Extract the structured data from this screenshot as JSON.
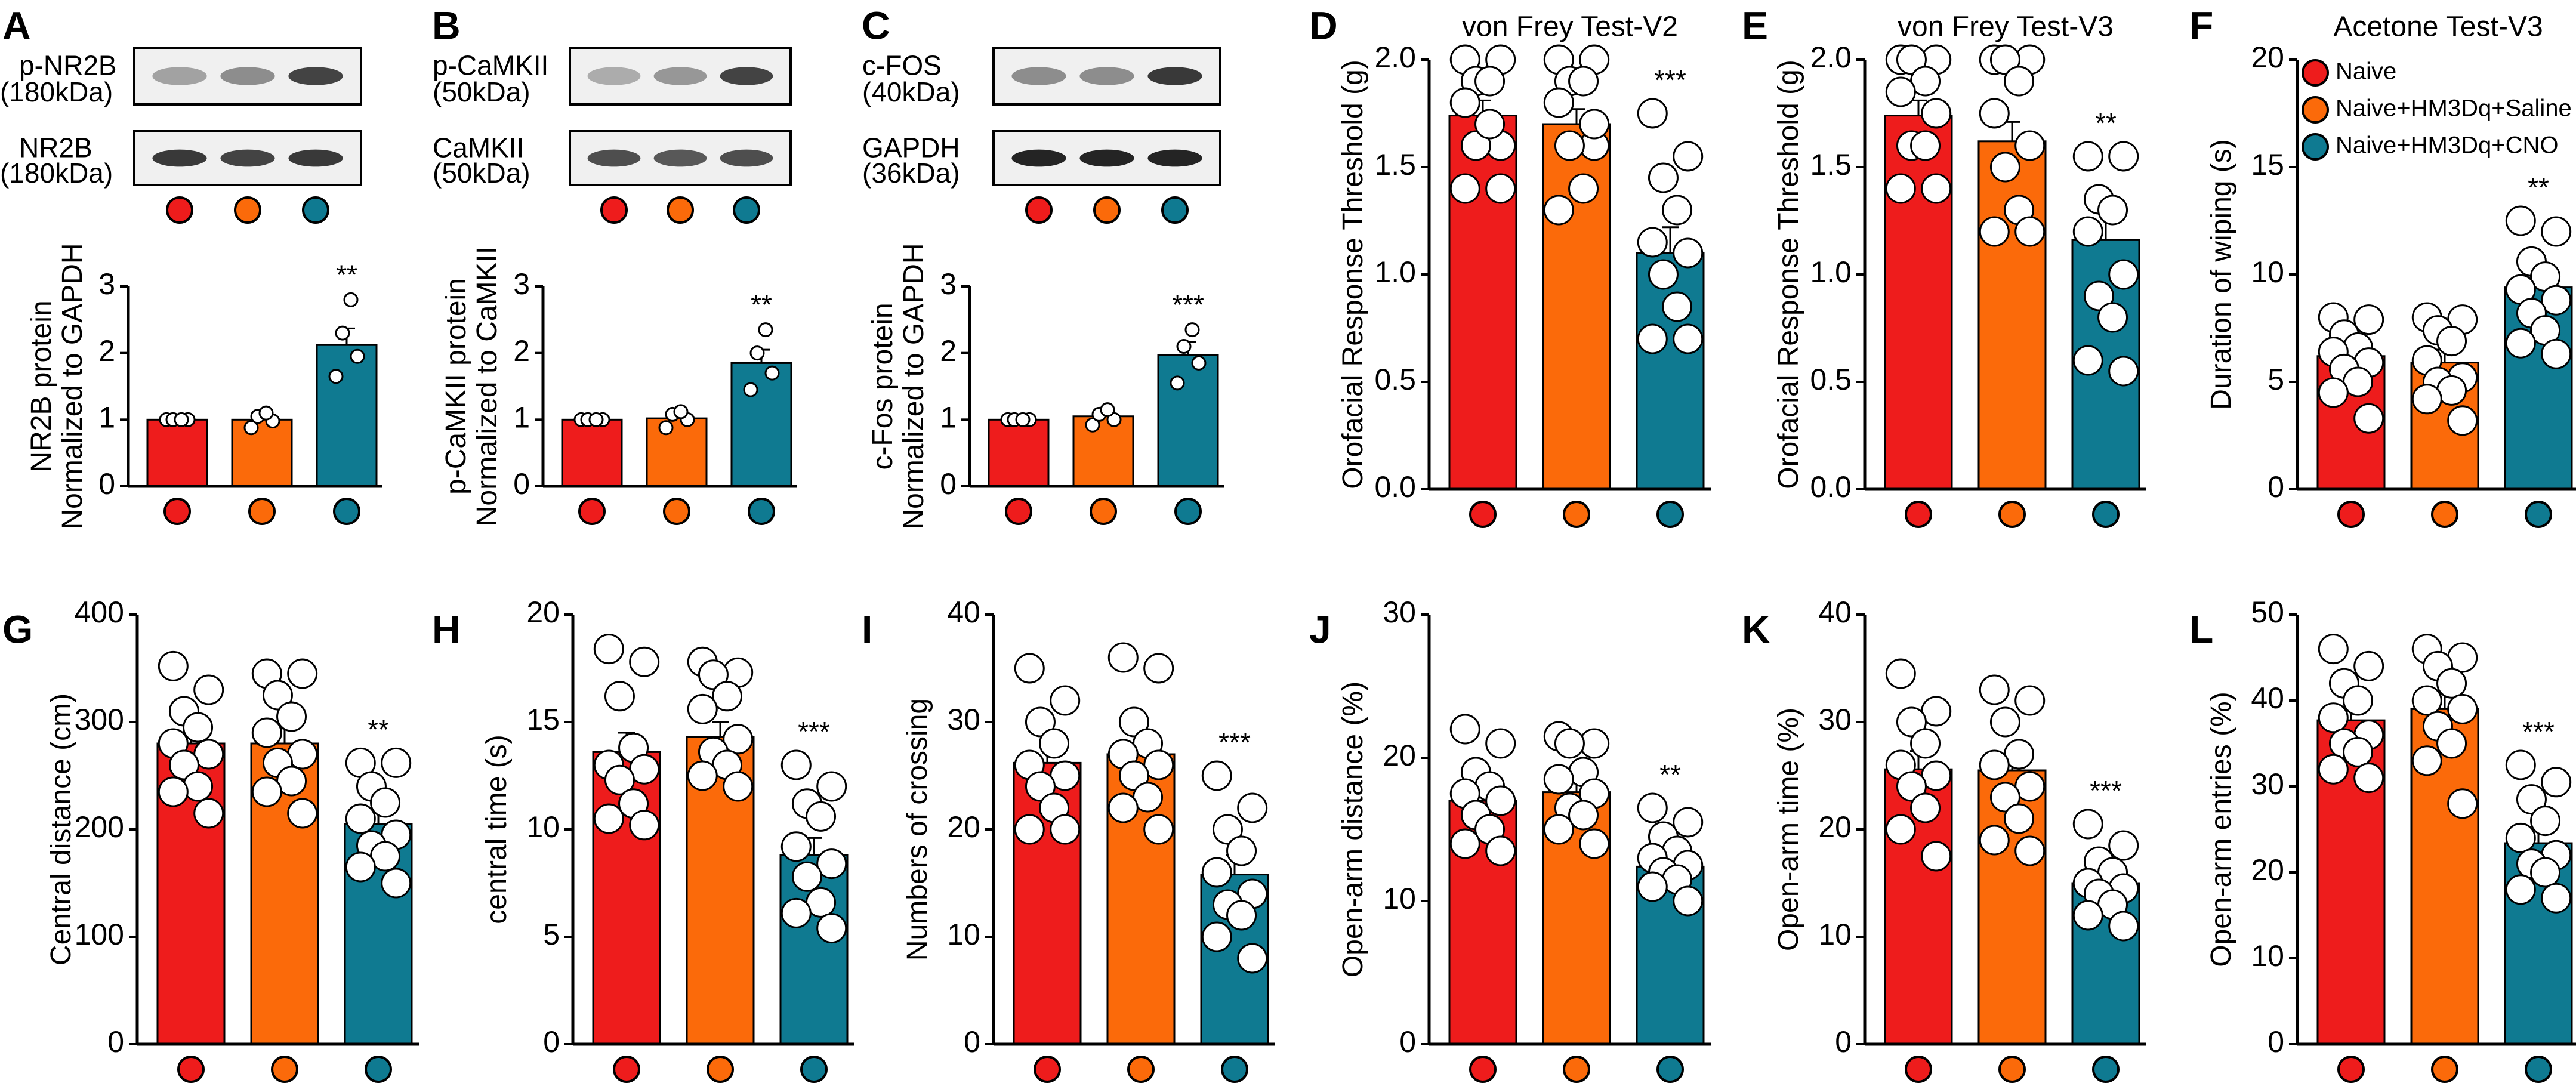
{
  "colors": {
    "naive": "#ee1c1c",
    "saline": "#fb6a0a",
    "cno": "#0f7a91"
  },
  "legend": {
    "items": [
      {
        "label": "Naive",
        "color": "#ee1c1c"
      },
      {
        "label": "Naive+HM3Dq+Saline",
        "color": "#fb6a0a"
      },
      {
        "label": "Naive+HM3Dq+CNO",
        "color": "#0f7a91"
      }
    ]
  },
  "blots": [
    {
      "panel": "A",
      "rows": [
        {
          "label1": "p-NR2B",
          "label2": "(180kDa)",
          "bands": [
            0.35,
            0.45,
            0.8
          ]
        },
        {
          "label1": "NR2B",
          "label2": "(180kDa)",
          "bands": [
            0.85,
            0.8,
            0.85
          ]
        }
      ]
    },
    {
      "panel": "B",
      "rows": [
        {
          "label1": "p-CaMKII",
          "label2": "(50kDa)",
          "bands": [
            0.3,
            0.4,
            0.8
          ]
        },
        {
          "label1": "CaMKII",
          "label2": "(50kDa)",
          "bands": [
            0.75,
            0.7,
            0.75
          ]
        }
      ]
    },
    {
      "panel": "C",
      "rows": [
        {
          "label1": "c-FOS",
          "label2": "(40kDa)",
          "bands": [
            0.45,
            0.45,
            0.85
          ]
        },
        {
          "label1": "GAPDH",
          "label2": "(36kDa)",
          "bands": [
            0.95,
            0.95,
            0.95
          ]
        }
      ]
    }
  ],
  "chart_data": [
    {
      "panel": "A",
      "type": "bar",
      "title": "",
      "ylabel": [
        "NR2B protein",
        "Normalized to GAPDH"
      ],
      "ylim": [
        0,
        3
      ],
      "ticks": [
        "0",
        "1",
        "2",
        "3"
      ],
      "values": [
        1.0,
        1.0,
        2.12
      ],
      "errors": [
        0.02,
        0.08,
        0.25
      ],
      "points": [
        [
          1,
          1,
          1,
          1
        ],
        [
          0.88,
          0.98,
          1.05,
          1.1
        ],
        [
          1.65,
          1.95,
          2.3,
          2.8
        ]
      ],
      "sig": [
        "",
        "",
        "**"
      ]
    },
    {
      "panel": "B",
      "type": "bar",
      "title": "",
      "ylabel": [
        "p-CaMKII protein",
        "Normalized to CaMKII"
      ],
      "ylim": [
        0,
        3
      ],
      "ticks": [
        "0",
        "1",
        "2",
        "3"
      ],
      "values": [
        1.0,
        1.02,
        1.85
      ],
      "errors": [
        0.02,
        0.1,
        0.2
      ],
      "points": [
        [
          1,
          1,
          1,
          1
        ],
        [
          0.88,
          1.0,
          1.08,
          1.12
        ],
        [
          1.45,
          1.7,
          2.0,
          2.35
        ]
      ],
      "sig": [
        "",
        "",
        "**"
      ]
    },
    {
      "panel": "C",
      "type": "bar",
      "title": "",
      "ylabel": [
        "c-Fos protein",
        "Normalized to GAPDH"
      ],
      "ylim": [
        0,
        3
      ],
      "ticks": [
        "0",
        "1",
        "2",
        "3"
      ],
      "values": [
        1.0,
        1.05,
        1.97
      ],
      "errors": [
        0.02,
        0.08,
        0.2
      ],
      "points": [
        [
          1,
          1,
          1,
          1
        ],
        [
          0.92,
          1.0,
          1.08,
          1.15
        ],
        [
          1.55,
          1.85,
          2.1,
          2.35
        ]
      ],
      "sig": [
        "",
        "",
        "***"
      ]
    },
    {
      "panel": "D",
      "type": "bar",
      "title": "von Frey Test-V2",
      "ylabel": [
        "Orofacial Response Threshold (g)"
      ],
      "ylim": [
        0,
        2.0
      ],
      "ticks": [
        "0.0",
        "0.5",
        "1.0",
        "1.5",
        "2.0"
      ],
      "values": [
        1.74,
        1.7,
        1.1
      ],
      "errors": [
        0.07,
        0.07,
        0.12
      ],
      "points": [
        [
          2,
          2,
          1.9,
          1.9,
          1.8,
          1.6,
          1.6,
          1.7,
          1.4,
          1.4
        ],
        [
          2,
          2,
          1.9,
          1.9,
          1.8,
          1.6,
          1.6,
          1.4,
          1.3,
          1.7
        ],
        [
          1.75,
          1.55,
          1.45,
          1.3,
          1.15,
          1.1,
          1.0,
          0.85,
          0.7,
          0.7
        ]
      ],
      "sig": [
        "",
        "",
        "***"
      ]
    },
    {
      "panel": "E",
      "type": "bar",
      "title": "von Frey Test-V3",
      "ylabel": [
        "Orofacial Response Threshold (g)"
      ],
      "ylim": [
        0,
        2.0
      ],
      "ticks": [
        "0.0",
        "0.5",
        "1.0",
        "1.5",
        "2.0"
      ],
      "values": [
        1.74,
        1.62,
        1.16
      ],
      "errors": [
        0.07,
        0.09,
        0.13
      ],
      "points": [
        [
          2,
          2,
          2,
          1.9,
          1.85,
          1.75,
          1.6,
          1.6,
          1.4,
          1.4
        ],
        [
          2,
          2,
          2,
          1.9,
          1.75,
          1.6,
          1.5,
          1.3,
          1.2,
          1.2
        ],
        [
          1.55,
          1.55,
          1.35,
          1.3,
          1.2,
          1.0,
          0.9,
          0.8,
          0.6,
          0.55
        ]
      ],
      "sig": [
        "",
        "",
        "**"
      ]
    },
    {
      "panel": "F",
      "type": "bar",
      "title": "Acetone Test-V3",
      "ylabel": [
        "Duration of wiping (s)"
      ],
      "ylim": [
        0,
        20
      ],
      "ticks": [
        "0",
        "5",
        "10",
        "15",
        "20"
      ],
      "values": [
        6.2,
        5.9,
        9.4
      ],
      "errors": [
        0.45,
        0.6,
        0.65
      ],
      "points": [
        [
          8,
          7.9,
          7.2,
          6.6,
          6.4,
          5.9,
          5.6,
          5.0,
          4.5,
          3.3
        ],
        [
          8,
          7.9,
          7.4,
          6.9,
          6.0,
          5.2,
          5.0,
          4.6,
          4.2,
          3.2
        ],
        [
          12.5,
          12.0,
          10.6,
          9.9,
          9.3,
          8.8,
          8.2,
          7.4,
          6.8,
          6.3
        ]
      ],
      "sig": [
        "",
        "",
        "**"
      ]
    },
    {
      "panel": "G",
      "type": "bar",
      "title": "",
      "ylabel": [
        "Central distance (cm)"
      ],
      "ylim": [
        0,
        400
      ],
      "ticks": [
        "0",
        "100",
        "200",
        "300",
        "400"
      ],
      "values": [
        280,
        280,
        205
      ],
      "errors": [
        14,
        14,
        12
      ],
      "points": [
        [
          352,
          330,
          310,
          295,
          280,
          270,
          260,
          240,
          235,
          215
        ],
        [
          345,
          345,
          325,
          305,
          290,
          270,
          262,
          245,
          235,
          215
        ],
        [
          262,
          262,
          240,
          225,
          210,
          195,
          185,
          175,
          165,
          150
        ]
      ],
      "sig": [
        "",
        "",
        "**"
      ]
    },
    {
      "panel": "H",
      "type": "bar",
      "title": "",
      "ylabel": [
        "central time (s)"
      ],
      "ylim": [
        0,
        20
      ],
      "ticks": [
        "0",
        "5",
        "10",
        "15",
        "20"
      ],
      "values": [
        13.6,
        14.3,
        8.8
      ],
      "errors": [
        0.9,
        0.7,
        0.8
      ],
      "points": [
        [
          18.4,
          17.8,
          16.2,
          13.8,
          13.0,
          12.8,
          12.3,
          11.2,
          10.5,
          10.2
        ],
        [
          17.8,
          17.3,
          17.2,
          16.2,
          15.6,
          14.2,
          13.6,
          13.0,
          12.5,
          12.0
        ],
        [
          13.0,
          12.0,
          11.2,
          10.6,
          9.2,
          8.4,
          7.8,
          6.6,
          6.1,
          5.4
        ]
      ],
      "sig": [
        "",
        "",
        "***"
      ]
    },
    {
      "panel": "I",
      "type": "bar",
      "title": "",
      "ylabel": [
        "Numbers of crossing"
      ],
      "ylim": [
        0,
        40
      ],
      "ticks": [
        "0",
        "10",
        "20",
        "30",
        "40"
      ],
      "values": [
        26.2,
        27.0,
        15.8
      ],
      "errors": [
        1.7,
        1.9,
        1.8
      ],
      "points": [
        [
          35,
          32,
          30,
          28,
          26,
          25,
          24,
          22,
          20,
          20
        ],
        [
          36,
          35,
          30,
          28,
          27,
          26,
          25,
          23,
          22,
          20
        ],
        [
          25,
          22,
          20,
          18,
          16,
          14,
          13,
          12,
          10,
          8
        ]
      ],
      "sig": [
        "",
        "",
        "***"
      ]
    },
    {
      "panel": "J",
      "type": "bar",
      "title": "",
      "ylabel": [
        "Open-arm distance (%)"
      ],
      "ylim": [
        0,
        30
      ],
      "ticks": [
        "0",
        "10",
        "20",
        "30"
      ],
      "values": [
        17.0,
        17.6,
        12.4
      ],
      "errors": [
        0.9,
        0.9,
        0.7
      ],
      "points": [
        [
          22.0,
          21.0,
          19.0,
          18.0,
          17.5,
          17.0,
          16.0,
          15.0,
          14.0,
          13.5
        ],
        [
          21.5,
          21.0,
          21.0,
          19.0,
          18.5,
          17.5,
          16.5,
          16.0,
          15.0,
          14.0
        ],
        [
          16.5,
          15.5,
          14.5,
          13.5,
          13.0,
          12.5,
          12.0,
          11.5,
          11.0,
          10.0
        ]
      ],
      "sig": [
        "",
        "",
        "**"
      ]
    },
    {
      "panel": "K",
      "type": "bar",
      "title": "",
      "ylabel": [
        "Open-arm time (%)"
      ],
      "ylim": [
        0,
        40
      ],
      "ticks": [
        "0",
        "10",
        "20",
        "30",
        "40"
      ],
      "values": [
        25.6,
        25.5,
        15.0
      ],
      "errors": [
        1.7,
        1.7,
        1.1
      ],
      "points": [
        [
          34.5,
          31.0,
          30.0,
          28.0,
          26.0,
          25.0,
          24.0,
          22.0,
          20.0,
          17.5
        ],
        [
          33.0,
          32.0,
          30.0,
          27.0,
          26.0,
          24.0,
          23.0,
          21.0,
          19.0,
          18.0
        ],
        [
          20.5,
          18.5,
          17.0,
          16.0,
          15.0,
          14.5,
          14.0,
          13.0,
          12.0,
          11.0
        ]
      ],
      "sig": [
        "",
        "",
        "***"
      ]
    },
    {
      "panel": "L",
      "type": "bar",
      "title": "",
      "ylabel": [
        "Open-arm entries (%)"
      ],
      "ylim": [
        0,
        50
      ],
      "ticks": [
        "0",
        "10",
        "20",
        "30",
        "40",
        "50"
      ],
      "values": [
        37.7,
        39.0,
        23.4
      ],
      "errors": [
        1.6,
        2.0,
        1.7
      ],
      "points": [
        [
          46.0,
          44.0,
          42.0,
          40.0,
          38.0,
          36.0,
          35.0,
          34.0,
          32.0,
          31.0
        ],
        [
          46.0,
          45.0,
          44.0,
          42.0,
          40.0,
          39.0,
          37.0,
          35.0,
          33.0,
          28.0
        ],
        [
          32.5,
          30.5,
          28.5,
          26.0,
          24.0,
          22.0,
          21.0,
          20.0,
          18.0,
          17.0
        ]
      ],
      "sig": [
        "",
        "",
        "***"
      ]
    }
  ]
}
